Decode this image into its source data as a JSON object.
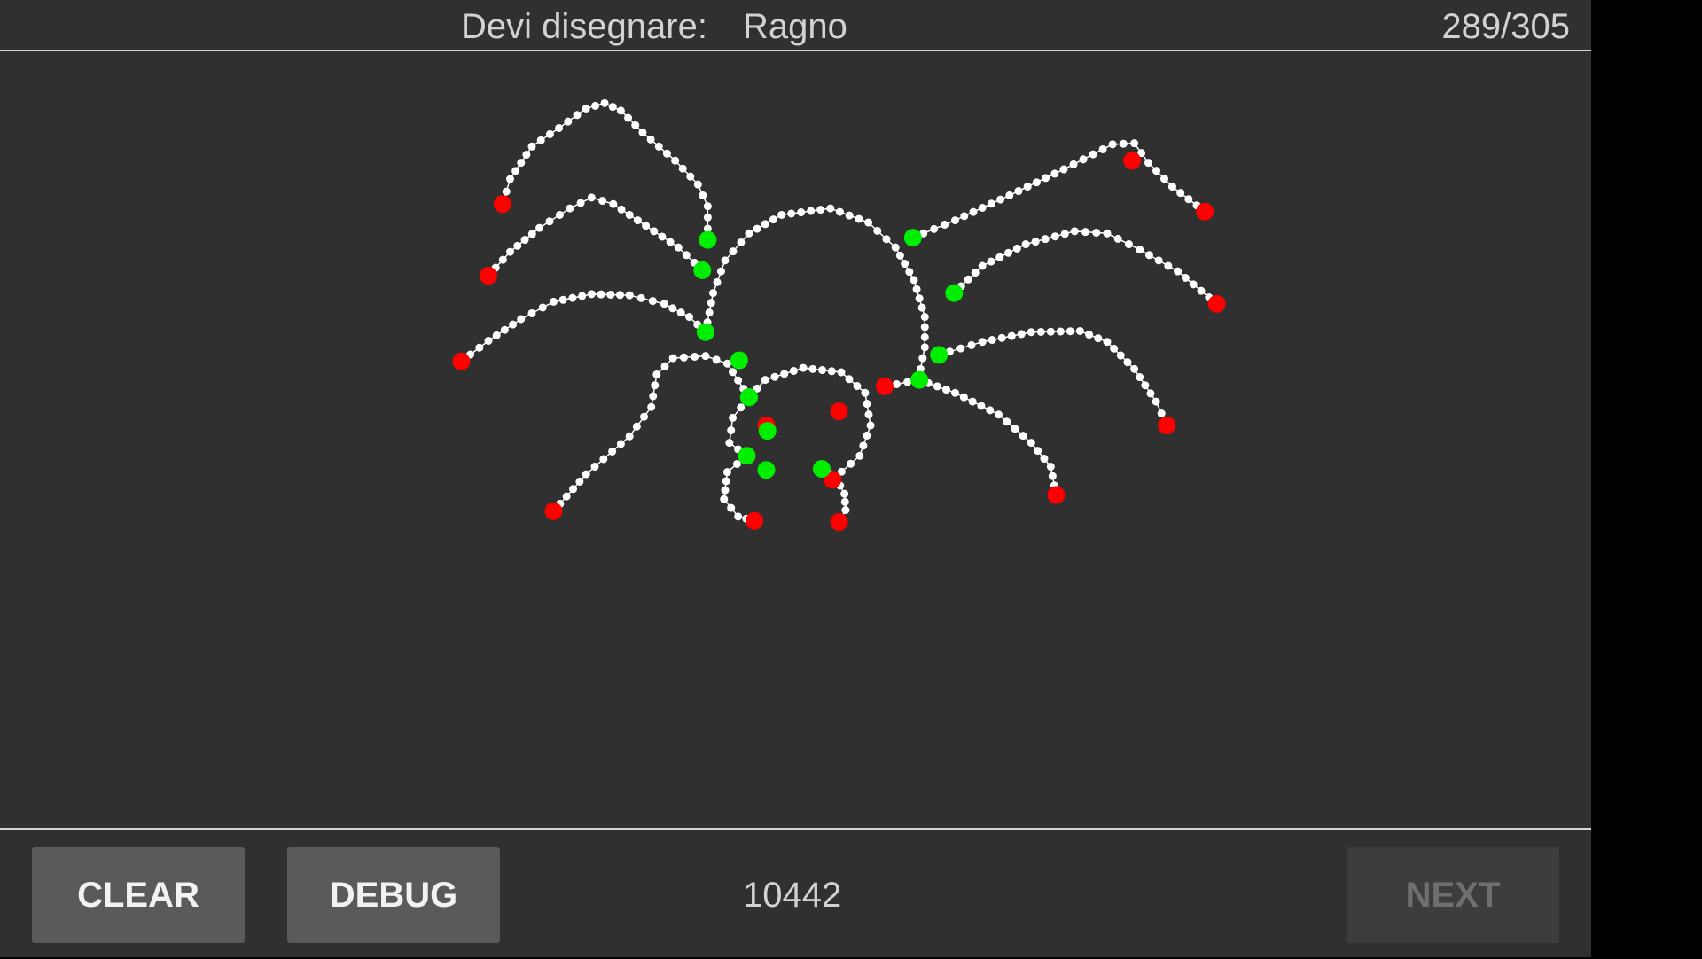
{
  "header": {
    "prompt_label": "Devi disegnare:",
    "prompt_word": "Ragno",
    "counter": "289/305"
  },
  "footer": {
    "clear_label": "CLEAR",
    "debug_label": "DEBUG",
    "score": "10442",
    "next_label": "NEXT"
  },
  "colors": {
    "background": "#303030",
    "stroke": "#ffffff",
    "stroke_start": "#00ee00",
    "stroke_end": "#ff0000",
    "button": "#5a5a5c",
    "button_disabled": "#3d3d3f"
  }
}
